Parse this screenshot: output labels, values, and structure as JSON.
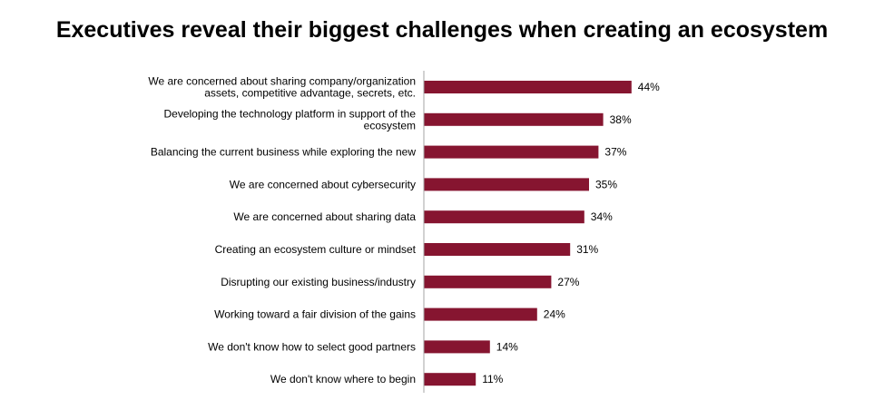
{
  "title": "Executives reveal their biggest challenges when creating an ecosystem",
  "colors": {
    "bar": "#861530",
    "axis": "#a6a6a6"
  },
  "chart_data": {
    "type": "bar",
    "orientation": "horizontal",
    "title": "Executives reveal their biggest challenges when creating an ecosystem",
    "xlabel": "",
    "ylabel": "",
    "xlim": [
      0,
      100
    ],
    "grid": false,
    "legend": "none",
    "value_suffix": "%",
    "categories": [
      [
        "We are concerned about sharing company/organization",
        "assets, competitive advantage, secrets, etc."
      ],
      [
        "Developing the technology platform in support of the",
        "ecosystem"
      ],
      [
        "Balancing the current business while exploring the new"
      ],
      [
        "We are concerned about cybersecurity"
      ],
      [
        "We are concerned about sharing data"
      ],
      [
        "Creating an ecosystem culture or mindset"
      ],
      [
        "Disrupting our existing business/industry"
      ],
      [
        "Working toward a fair division of the gains"
      ],
      [
        "We don't know how to select good partners"
      ],
      [
        "We don't know where to begin"
      ]
    ],
    "values": [
      44,
      38,
      37,
      35,
      34,
      31,
      27,
      24,
      14,
      11
    ],
    "value_labels": [
      "44%",
      "38%",
      "37%",
      "35%",
      "34%",
      "31%",
      "27%",
      "24%",
      "14%",
      "11%"
    ]
  }
}
